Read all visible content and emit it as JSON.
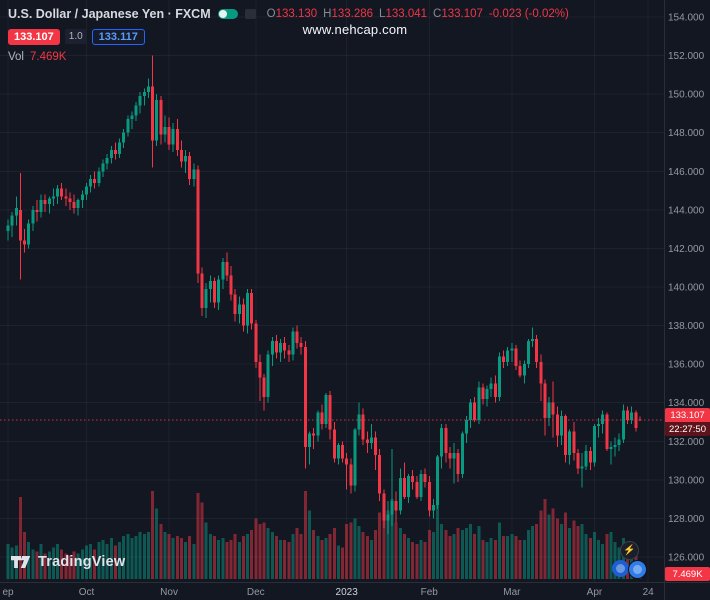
{
  "watermark": "www.nehcap.com",
  "header": {
    "title": "U.S. Dollar / Japanese Yen · FXCM",
    "ohlc": {
      "o_label": "O",
      "o": "133.130",
      "h_label": "H",
      "h": "133.286",
      "l_label": "L",
      "l": "133.041",
      "c_label": "C",
      "c": "133.107",
      "change": "-0.023 (-0.02%)"
    },
    "sell_price": "133.107",
    "spread": "1.0",
    "buy_price": "133.117",
    "vol_label": "Vol",
    "vol_value": "7.469K"
  },
  "price_axis": {
    "last_price": "133.107",
    "countdown": "22:27:50",
    "levels": [
      154,
      152,
      150,
      148,
      146,
      144,
      142,
      140,
      138,
      136,
      134,
      132,
      130,
      128,
      126
    ]
  },
  "time_axis": {
    "labels": [
      {
        "text": "ep",
        "i": 0
      },
      {
        "text": "Oct",
        "i": 19
      },
      {
        "text": "Nov",
        "i": 39
      },
      {
        "text": "Dec",
        "i": 60
      },
      {
        "text": "2023",
        "i": 82
      },
      {
        "text": "Feb",
        "i": 102
      },
      {
        "text": "Mar",
        "i": 122
      },
      {
        "text": "Apr",
        "i": 142
      },
      {
        "text": "24",
        "i": 155
      }
    ]
  },
  "volume": {
    "badge": "7.469K"
  },
  "logo": {
    "text": "TradingView"
  },
  "colors": {
    "background": "#131722",
    "up": "#089981",
    "down": "#f23645",
    "accent_blue": "#2962ff",
    "axis_text": "#9399a3"
  },
  "chart_data": {
    "type": "candlestick",
    "title": "U.S. Dollar / Japanese Yen",
    "exchange": "FXCM",
    "x_range": "Sep 2022 - Apr 2023, daily",
    "ylim": [
      125.5,
      154.5
    ],
    "last": 133.107,
    "volume_unit": "K",
    "candles_format": [
      "open",
      "high",
      "low",
      "close",
      "volume_k"
    ],
    "candles": [
      [
        142.9,
        143.5,
        142.4,
        143.2,
        18
      ],
      [
        143.2,
        143.9,
        142.6,
        143.7,
        16
      ],
      [
        143.7,
        144.7,
        143.2,
        144.1,
        17
      ],
      [
        144.0,
        145.9,
        140.4,
        142.4,
        42
      ],
      [
        142.4,
        143.0,
        141.8,
        142.2,
        24
      ],
      [
        142.2,
        143.5,
        142.0,
        143.3,
        19
      ],
      [
        143.3,
        144.2,
        142.9,
        144.0,
        15
      ],
      [
        144.0,
        144.5,
        143.4,
        143.9,
        14
      ],
      [
        143.9,
        144.8,
        143.6,
        144.5,
        18
      ],
      [
        144.5,
        144.8,
        143.9,
        144.3,
        13
      ],
      [
        144.3,
        144.7,
        143.8,
        144.6,
        14
      ],
      [
        144.6,
        145.1,
        144.2,
        144.7,
        16
      ],
      [
        144.7,
        145.3,
        144.3,
        145.1,
        18
      ],
      [
        145.1,
        145.4,
        144.5,
        144.7,
        15
      ],
      [
        144.7,
        145.1,
        144.2,
        144.6,
        13
      ],
      [
        144.6,
        144.9,
        144.0,
        144.4,
        12
      ],
      [
        144.4,
        144.8,
        143.8,
        144.1,
        14
      ],
      [
        144.1,
        144.6,
        143.7,
        144.5,
        13
      ],
      [
        144.5,
        145.0,
        144.1,
        144.8,
        15
      ],
      [
        144.8,
        145.4,
        144.5,
        145.2,
        17
      ],
      [
        145.2,
        145.8,
        144.9,
        145.6,
        18
      ],
      [
        145.6,
        146.0,
        145.1,
        145.4,
        15
      ],
      [
        145.4,
        146.2,
        145.2,
        146.0,
        19
      ],
      [
        146.0,
        146.6,
        145.7,
        146.4,
        20
      ],
      [
        146.4,
        146.9,
        146.1,
        146.7,
        18
      ],
      [
        146.7,
        147.3,
        146.4,
        147.1,
        21
      ],
      [
        147.1,
        147.5,
        146.6,
        146.9,
        17
      ],
      [
        146.9,
        147.7,
        146.7,
        147.5,
        19
      ],
      [
        147.5,
        148.2,
        147.2,
        148.0,
        22
      ],
      [
        148.0,
        148.9,
        147.8,
        148.7,
        23
      ],
      [
        148.7,
        149.1,
        148.2,
        148.9,
        21
      ],
      [
        148.9,
        149.6,
        148.6,
        149.4,
        22
      ],
      [
        149.4,
        150.1,
        149.0,
        149.9,
        24
      ],
      [
        149.9,
        150.3,
        149.4,
        150.1,
        23
      ],
      [
        150.1,
        150.8,
        149.8,
        150.4,
        24
      ],
      [
        150.4,
        152.0,
        146.2,
        147.6,
        45
      ],
      [
        147.6,
        150.0,
        147.3,
        149.7,
        36
      ],
      [
        149.7,
        149.9,
        147.4,
        147.9,
        28
      ],
      [
        147.9,
        148.9,
        147.5,
        148.3,
        24
      ],
      [
        148.3,
        148.8,
        147.1,
        147.4,
        23
      ],
      [
        147.4,
        148.5,
        147.0,
        148.2,
        21
      ],
      [
        148.2,
        148.7,
        146.8,
        147.1,
        22
      ],
      [
        147.1,
        147.6,
        146.2,
        146.5,
        21
      ],
      [
        146.5,
        147.1,
        145.9,
        146.8,
        19
      ],
      [
        146.8,
        147.0,
        145.3,
        145.6,
        22
      ],
      [
        145.6,
        146.4,
        145.2,
        146.1,
        18
      ],
      [
        146.1,
        146.3,
        140.2,
        140.7,
        44
      ],
      [
        140.7,
        141.0,
        138.5,
        138.9,
        39
      ],
      [
        138.9,
        140.2,
        138.4,
        139.9,
        29
      ],
      [
        139.9,
        140.6,
        139.2,
        140.3,
        23
      ],
      [
        140.3,
        140.5,
        138.9,
        139.2,
        22
      ],
      [
        139.2,
        140.6,
        138.8,
        140.4,
        20
      ],
      [
        140.4,
        141.5,
        139.9,
        141.3,
        21
      ],
      [
        141.3,
        141.8,
        140.3,
        140.6,
        19
      ],
      [
        140.6,
        141.1,
        139.3,
        139.6,
        20
      ],
      [
        139.6,
        139.9,
        138.2,
        138.6,
        23
      ],
      [
        138.6,
        139.5,
        138.1,
        139.1,
        19
      ],
      [
        139.1,
        139.4,
        137.7,
        138.0,
        22
      ],
      [
        138.0,
        139.9,
        137.6,
        139.7,
        23
      ],
      [
        139.7,
        139.9,
        137.8,
        138.1,
        25
      ],
      [
        138.1,
        138.3,
        135.8,
        136.1,
        31
      ],
      [
        136.1,
        136.5,
        134.1,
        135.3,
        28
      ],
      [
        135.3,
        135.5,
        133.6,
        134.3,
        29
      ],
      [
        134.3,
        136.7,
        134.0,
        136.5,
        26
      ],
      [
        136.5,
        137.4,
        135.9,
        137.2,
        24
      ],
      [
        137.2,
        137.5,
        136.3,
        136.6,
        22
      ],
      [
        136.6,
        137.3,
        136.1,
        137.1,
        20
      ],
      [
        137.1,
        137.4,
        136.3,
        136.7,
        20
      ],
      [
        136.7,
        137.0,
        136.1,
        136.5,
        19
      ],
      [
        136.5,
        137.9,
        136.2,
        137.7,
        23
      ],
      [
        137.7,
        138.0,
        136.8,
        137.1,
        26
      ],
      [
        137.1,
        137.4,
        136.5,
        136.9,
        23
      ],
      [
        136.9,
        137.2,
        130.6,
        131.7,
        45
      ],
      [
        131.7,
        132.5,
        130.8,
        132.4,
        35
      ],
      [
        132.4,
        132.7,
        131.6,
        132.3,
        25
      ],
      [
        132.3,
        133.6,
        132.0,
        133.5,
        22
      ],
      [
        133.5,
        133.9,
        132.6,
        132.9,
        20
      ],
      [
        132.9,
        134.5,
        132.7,
        134.4,
        21
      ],
      [
        134.4,
        134.6,
        132.1,
        132.6,
        23
      ],
      [
        132.6,
        133.0,
        130.9,
        131.1,
        26
      ],
      [
        131.1,
        131.9,
        130.8,
        131.8,
        17
      ],
      [
        131.8,
        132.0,
        130.9,
        131.1,
        16
      ],
      [
        131.1,
        131.4,
        129.5,
        130.8,
        28
      ],
      [
        130.8,
        131.1,
        129.3,
        129.7,
        29
      ],
      [
        129.7,
        132.7,
        129.4,
        132.6,
        31
      ],
      [
        132.6,
        134.0,
        132.3,
        133.4,
        27
      ],
      [
        133.4,
        133.7,
        131.8,
        132.1,
        24
      ],
      [
        132.1,
        132.5,
        131.4,
        131.9,
        22
      ],
      [
        131.9,
        132.9,
        131.6,
        132.2,
        20
      ],
      [
        132.2,
        132.5,
        130.5,
        131.3,
        25
      ],
      [
        131.3,
        131.6,
        128.9,
        129.3,
        34
      ],
      [
        129.3,
        129.5,
        127.5,
        127.9,
        37
      ],
      [
        127.9,
        128.9,
        127.2,
        128.2,
        35
      ],
      [
        128.2,
        131.6,
        127.6,
        128.9,
        41
      ],
      [
        128.9,
        129.4,
        127.8,
        128.4,
        29
      ],
      [
        128.4,
        130.6,
        128.2,
        130.1,
        26
      ],
      [
        130.1,
        130.9,
        129.0,
        129.1,
        23
      ],
      [
        129.1,
        130.3,
        128.8,
        130.2,
        21
      ],
      [
        130.2,
        130.5,
        129.5,
        129.9,
        19
      ],
      [
        129.9,
        130.2,
        129.0,
        129.1,
        18
      ],
      [
        129.1,
        130.5,
        128.9,
        130.3,
        20
      ],
      [
        130.3,
        130.6,
        129.6,
        129.9,
        19
      ],
      [
        129.9,
        130.2,
        128.1,
        128.4,
        25
      ],
      [
        128.4,
        129.0,
        128.0,
        128.7,
        24
      ],
      [
        128.7,
        131.3,
        128.5,
        131.2,
        38
      ],
      [
        131.2,
        132.9,
        130.6,
        132.7,
        28
      ],
      [
        132.7,
        132.9,
        130.9,
        131.4,
        25
      ],
      [
        131.4,
        131.7,
        130.6,
        131.1,
        22
      ],
      [
        131.1,
        131.9,
        129.8,
        131.4,
        23
      ],
      [
        131.4,
        131.6,
        129.9,
        130.3,
        26
      ],
      [
        130.3,
        132.5,
        130.1,
        132.4,
        25
      ],
      [
        132.4,
        133.3,
        131.9,
        133.1,
        26
      ],
      [
        133.1,
        134.2,
        132.7,
        134.0,
        28
      ],
      [
        134.0,
        134.3,
        133.0,
        133.1,
        23
      ],
      [
        133.1,
        135.1,
        132.9,
        134.8,
        27
      ],
      [
        134.8,
        135.0,
        133.9,
        134.2,
        20
      ],
      [
        134.2,
        134.9,
        133.8,
        134.7,
        19
      ],
      [
        134.7,
        135.3,
        134.3,
        135.0,
        21
      ],
      [
        135.0,
        135.4,
        134.0,
        134.3,
        20
      ],
      [
        134.3,
        136.6,
        134.1,
        136.4,
        29
      ],
      [
        136.4,
        136.7,
        135.8,
        136.1,
        22
      ],
      [
        136.1,
        136.9,
        135.9,
        136.7,
        22
      ],
      [
        136.7,
        137.1,
        136.1,
        136.8,
        23
      ],
      [
        136.8,
        137.0,
        135.7,
        135.9,
        22
      ],
      [
        135.9,
        136.2,
        135.3,
        135.4,
        20
      ],
      [
        135.4,
        136.2,
        135.0,
        136.0,
        20
      ],
      [
        136.0,
        137.3,
        135.8,
        137.2,
        25
      ],
      [
        137.2,
        137.9,
        136.9,
        137.3,
        27
      ],
      [
        137.3,
        137.5,
        135.8,
        136.1,
        28
      ],
      [
        136.1,
        136.5,
        134.1,
        135.0,
        35
      ],
      [
        135.0,
        135.2,
        132.3,
        133.2,
        41
      ],
      [
        133.2,
        134.3,
        132.8,
        134.0,
        33
      ],
      [
        134.0,
        135.1,
        132.2,
        133.4,
        36
      ],
      [
        133.4,
        133.8,
        131.7,
        132.3,
        31
      ],
      [
        132.3,
        133.6,
        131.8,
        133.3,
        28
      ],
      [
        133.3,
        133.4,
        130.9,
        131.3,
        34
      ],
      [
        131.3,
        132.6,
        130.8,
        132.5,
        26
      ],
      [
        132.5,
        133.0,
        131.0,
        131.4,
        30
      ],
      [
        131.4,
        131.6,
        130.3,
        130.6,
        27
      ],
      [
        130.6,
        131.4,
        129.6,
        130.7,
        28
      ],
      [
        130.7,
        131.8,
        130.5,
        131.5,
        23
      ],
      [
        131.5,
        131.7,
        130.5,
        130.9,
        21
      ],
      [
        130.9,
        132.9,
        130.7,
        132.8,
        24
      ],
      [
        132.8,
        133.2,
        132.2,
        132.9,
        20
      ],
      [
        132.9,
        133.6,
        132.4,
        133.4,
        18
      ],
      [
        133.4,
        133.5,
        131.5,
        131.6,
        23
      ],
      [
        131.6,
        132.0,
        130.8,
        131.7,
        24
      ],
      [
        131.7,
        132.2,
        131.2,
        131.8,
        19
      ],
      [
        131.8,
        132.4,
        131.5,
        132.1,
        16
      ],
      [
        132.1,
        133.9,
        131.9,
        133.6,
        21
      ],
      [
        133.6,
        133.8,
        132.9,
        133.1,
        17
      ],
      [
        133.1,
        133.8,
        132.9,
        133.5,
        15
      ],
      [
        133.5,
        133.6,
        132.5,
        132.7,
        14
      ],
      [
        133.13,
        133.286,
        133.041,
        133.107,
        7.469
      ]
    ]
  }
}
